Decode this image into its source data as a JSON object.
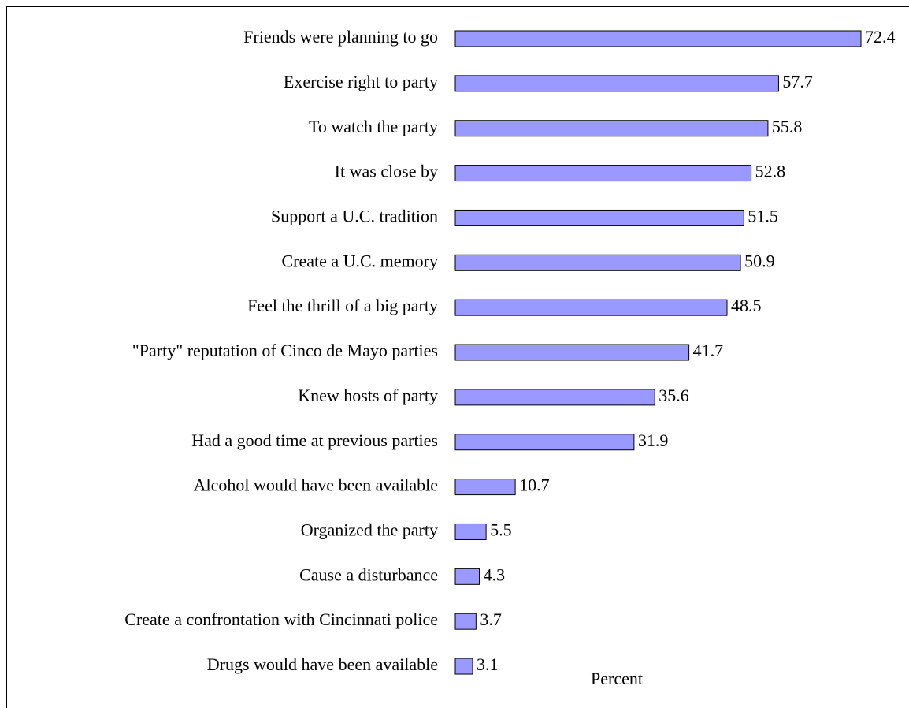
{
  "chart_data": {
    "type": "bar",
    "orientation": "horizontal",
    "xlabel": "Percent",
    "categories": [
      "Friends were planning to go",
      "Exercise right to party",
      "To watch the party",
      "It was close by",
      "Support a U.C. tradition",
      "Create a U.C. memory",
      "Feel the thrill of a big party",
      "\"Party\" reputation of Cinco de Mayo parties",
      "Knew hosts of party",
      "Had a good time at previous parties",
      "Alcohol would have been available",
      "Organized the party",
      "Cause a disturbance",
      "Create a confrontation with Cincinnati police",
      "Drugs would have been available"
    ],
    "values": [
      72.4,
      57.7,
      55.8,
      52.8,
      51.5,
      50.9,
      48.5,
      41.7,
      35.6,
      31.9,
      10.7,
      5.5,
      4.3,
      3.7,
      3.1
    ],
    "color": "#9999ff"
  }
}
